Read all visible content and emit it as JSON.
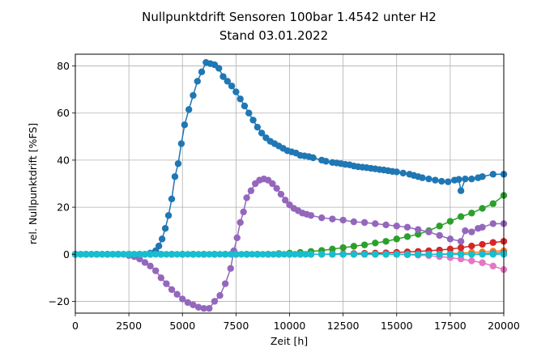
{
  "chart_data": {
    "type": "line",
    "title": "Nullpunktdrift Sensoren 100bar 1.4542 unter H2",
    "subtitle": "Stand 03.01.2022",
    "xlabel": "Zeit [h]",
    "ylabel": "rel. Nullpunktdrift [%FS]",
    "xlim": [
      0,
      20000
    ],
    "ylim": [
      -25,
      85
    ],
    "xticks": [
      0,
      2500,
      5000,
      7500,
      10000,
      12500,
      15000,
      17500,
      20000
    ],
    "yticks": [
      -20,
      0,
      20,
      40,
      60,
      80
    ],
    "grid": true,
    "markers": "circle",
    "series": [
      {
        "color": "#1f77b4",
        "x": [
          0,
          250,
          500,
          750,
          1000,
          1250,
          1500,
          1750,
          2000,
          2250,
          2500,
          2750,
          3000,
          3250,
          3500,
          3750,
          3900,
          4050,
          4200,
          4350,
          4500,
          4650,
          4800,
          4950,
          5100,
          5300,
          5500,
          5700,
          5900,
          6100,
          6300,
          6500,
          6700,
          6900,
          7100,
          7300,
          7500,
          7700,
          7900,
          8100,
          8300,
          8500,
          8700,
          8900,
          9100,
          9300,
          9500,
          9700,
          9900,
          10100,
          10300,
          10500,
          10700,
          10900,
          11100,
          11500,
          11700,
          12000,
          12200,
          12400,
          12600,
          12800,
          13000,
          13200,
          13400,
          13600,
          13800,
          14000,
          14200,
          14400,
          14600,
          14800,
          15000,
          15300,
          15600,
          15800,
          16000,
          16200,
          16500,
          16800,
          17100,
          17400,
          17700,
          17900,
          18000,
          18200,
          18500,
          18800,
          19000,
          19500,
          20000
        ],
        "y": [
          0,
          0,
          0,
          0,
          0,
          0,
          0,
          0,
          0,
          0,
          0,
          0,
          0,
          0,
          0.5,
          1.5,
          3.5,
          6.5,
          11,
          16.5,
          23.5,
          33,
          38.5,
          47,
          55,
          61.5,
          67.5,
          73.5,
          77.5,
          81.5,
          81,
          80.5,
          79,
          75.5,
          73.5,
          71.5,
          69,
          66,
          63,
          60,
          57,
          54,
          51.5,
          49.5,
          48,
          47,
          46,
          45,
          44,
          43.5,
          43,
          42,
          41.8,
          41.5,
          41,
          40,
          39.5,
          39,
          38.8,
          38.5,
          38.2,
          38,
          37.5,
          37.2,
          37,
          36.8,
          36.5,
          36.3,
          36,
          35.8,
          35.5,
          35.2,
          35,
          34.5,
          34,
          33.5,
          33,
          32.5,
          32,
          31.5,
          31,
          30.8,
          31.5,
          31.8,
          27,
          32,
          32,
          32.5,
          33,
          34,
          34
        ]
      },
      {
        "color": "#ff7f0e",
        "x": [
          0,
          500,
          1000,
          1500,
          2000,
          2500,
          3000,
          3500,
          4000,
          4500,
          5000,
          5500,
          6000,
          6500,
          7000,
          7500,
          8000,
          8500,
          9000,
          9500,
          10000,
          10500,
          11000,
          11500,
          12000,
          12500,
          13000,
          13500,
          14000,
          14500,
          15000,
          15500,
          16000,
          16500,
          17000,
          17500,
          18000,
          18500,
          19000,
          19500,
          20000
        ],
        "y": [
          0,
          0,
          0,
          0,
          0,
          0,
          0,
          0,
          0,
          0,
          0,
          0,
          0,
          0,
          0,
          0,
          0,
          0,
          0,
          0,
          0,
          0,
          0,
          0,
          0,
          0,
          0,
          0,
          0,
          0,
          0,
          0,
          0,
          0,
          0,
          0.3,
          0.5,
          0.8,
          1,
          1.3,
          1.5
        ]
      },
      {
        "color": "#2ca02c",
        "x": [
          0,
          500,
          1000,
          1500,
          2000,
          2500,
          3000,
          3500,
          4000,
          4500,
          5000,
          5500,
          6000,
          6500,
          7000,
          7500,
          8000,
          8500,
          9000,
          9500,
          10000,
          10500,
          11000,
          11500,
          12000,
          12500,
          13000,
          13500,
          14000,
          14500,
          15000,
          15500,
          16000,
          16500,
          17000,
          17500,
          18000,
          18500,
          19000,
          19500,
          20000
        ],
        "y": [
          0,
          0,
          0,
          0,
          0,
          0,
          0,
          0,
          0,
          0,
          0,
          0,
          0,
          0,
          0,
          0,
          0,
          0,
          0,
          0.3,
          0.5,
          0.8,
          1.2,
          1.6,
          2.2,
          2.8,
          3.4,
          4,
          4.8,
          5.5,
          6.5,
          7.5,
          8.5,
          10,
          12,
          14,
          16,
          17.5,
          19.5,
          21.5,
          25
        ]
      },
      {
        "color": "#d62728",
        "x": [
          0,
          500,
          1000,
          1500,
          2000,
          2500,
          3000,
          3500,
          4000,
          4500,
          5000,
          5500,
          6000,
          6500,
          7000,
          7500,
          8000,
          8500,
          9000,
          9500,
          10000,
          10500,
          11000,
          11500,
          12000,
          12500,
          13000,
          13500,
          14000,
          14500,
          15000,
          15500,
          16000,
          16500,
          17000,
          17500,
          18000,
          18500,
          19000,
          19500,
          20000
        ],
        "y": [
          0,
          0,
          0,
          0,
          0,
          0,
          0,
          0,
          0,
          0,
          0,
          0,
          0,
          0,
          0,
          0,
          0,
          0,
          0,
          0,
          0,
          0,
          0,
          0,
          0.1,
          0.2,
          0.3,
          0.4,
          0.5,
          0.6,
          0.8,
          1,
          1.2,
          1.5,
          1.8,
          2.2,
          2.8,
          3.5,
          4.2,
          5,
          5.5
        ]
      },
      {
        "color": "#9467bd",
        "x": [
          0,
          500,
          1000,
          1500,
          2000,
          2500,
          2750,
          3000,
          3250,
          3500,
          3750,
          4000,
          4250,
          4500,
          4750,
          5000,
          5250,
          5500,
          5750,
          6000,
          6250,
          6500,
          6750,
          7000,
          7250,
          7400,
          7550,
          7700,
          7850,
          8000,
          8200,
          8400,
          8600,
          8800,
          9000,
          9200,
          9400,
          9600,
          9800,
          10000,
          10200,
          10400,
          10600,
          10800,
          11000,
          11500,
          12000,
          12500,
          13000,
          13500,
          14000,
          14500,
          15000,
          15500,
          16000,
          16500,
          17000,
          17500,
          18000,
          18200,
          18500,
          18800,
          19000,
          19500,
          20000
        ],
        "y": [
          0,
          0,
          0,
          0,
          0,
          -0.5,
          -1,
          -2,
          -3.5,
          -5,
          -7,
          -10,
          -12.5,
          -15,
          -17,
          -19,
          -20.5,
          -21.5,
          -22.5,
          -23,
          -23,
          -20,
          -17.5,
          -12.5,
          -6,
          1.5,
          7,
          13.5,
          18,
          24,
          27,
          30,
          31.5,
          32,
          31.5,
          30,
          28,
          25.5,
          23,
          21,
          19.5,
          18.5,
          17.5,
          17,
          16.5,
          15.5,
          15,
          14.5,
          13.8,
          13.5,
          13,
          12.5,
          12,
          11.5,
          10.5,
          9.5,
          8,
          6.5,
          5.5,
          10,
          9.5,
          11,
          11.5,
          13,
          13
        ]
      },
      {
        "color": "#e377c2",
        "x": [
          0,
          500,
          1000,
          1500,
          2000,
          2500,
          3000,
          3500,
          4000,
          4500,
          5000,
          5500,
          6000,
          6500,
          7000,
          7500,
          8000,
          8500,
          9000,
          9500,
          10000,
          10500,
          11000,
          11500,
          12000,
          12500,
          13000,
          13500,
          14000,
          14500,
          15000,
          15500,
          16000,
          16500,
          17000,
          17500,
          18000,
          18500,
          19000,
          19500,
          20000
        ],
        "y": [
          0,
          0,
          0,
          0,
          0,
          0,
          0,
          0,
          0,
          0,
          0,
          0,
          0,
          0,
          0,
          0,
          0,
          0,
          0,
          0,
          0,
          0,
          0,
          0,
          0,
          0,
          0,
          0,
          0,
          0,
          0,
          -0.2,
          -0.4,
          -0.6,
          -1,
          -1.4,
          -2,
          -2.8,
          -3.6,
          -5,
          -6.5
        ]
      },
      {
        "color": "#7f7f7f",
        "x": [
          0,
          500,
          1000,
          1500,
          2000,
          2500,
          3000,
          3500,
          4000,
          4500,
          5000,
          5500,
          6000,
          6500,
          7000,
          7500,
          8000,
          8500,
          9000,
          9500,
          10000,
          10500,
          11000,
          11500,
          12000,
          12500,
          13000,
          13500,
          14000,
          14500,
          15000,
          15500,
          16000,
          16500,
          17000,
          17500,
          18000,
          18500,
          19000,
          19500,
          20000
        ],
        "y": [
          0,
          0,
          0,
          0,
          0,
          0,
          0,
          0,
          0,
          0,
          0,
          0,
          0,
          0,
          0,
          0,
          0,
          0,
          0,
          0,
          0,
          0,
          0,
          0,
          0,
          0,
          0,
          0,
          0,
          0,
          0,
          0,
          0,
          0,
          0,
          0,
          0,
          0,
          0.2,
          0.5,
          0.8
        ]
      },
      {
        "color": "#17becf",
        "x": [
          0,
          250,
          500,
          750,
          1000,
          1250,
          1500,
          1750,
          2000,
          2250,
          2500,
          2750,
          3000,
          3250,
          3500,
          3750,
          4000,
          4250,
          4500,
          4750,
          5000,
          5250,
          5500,
          5750,
          6000,
          6250,
          6500,
          6750,
          7000,
          7250,
          7500,
          7750,
          8000,
          8250,
          8500,
          8750,
          9000,
          9250,
          9500,
          9750,
          10000,
          10250,
          10500,
          10750,
          11000,
          11500,
          12000,
          12500,
          13000,
          13500,
          14000,
          14500,
          15000,
          15500,
          16000,
          16500,
          17000,
          17500,
          18000,
          18500,
          19000,
          19500,
          20000
        ],
        "y": [
          0,
          0,
          0,
          0,
          0,
          0,
          0,
          0,
          0,
          0,
          0,
          0,
          0,
          0,
          0,
          0,
          0,
          0,
          0,
          0,
          0,
          0,
          0,
          0,
          0,
          0,
          0,
          0,
          0,
          0,
          0,
          0,
          0,
          0,
          0,
          0,
          0,
          0,
          0,
          0,
          0,
          0,
          0,
          0,
          0,
          0,
          0,
          0,
          0,
          0,
          0,
          0,
          0,
          0,
          0,
          0,
          0,
          0,
          0,
          0,
          0,
          0,
          0
        ]
      }
    ]
  }
}
